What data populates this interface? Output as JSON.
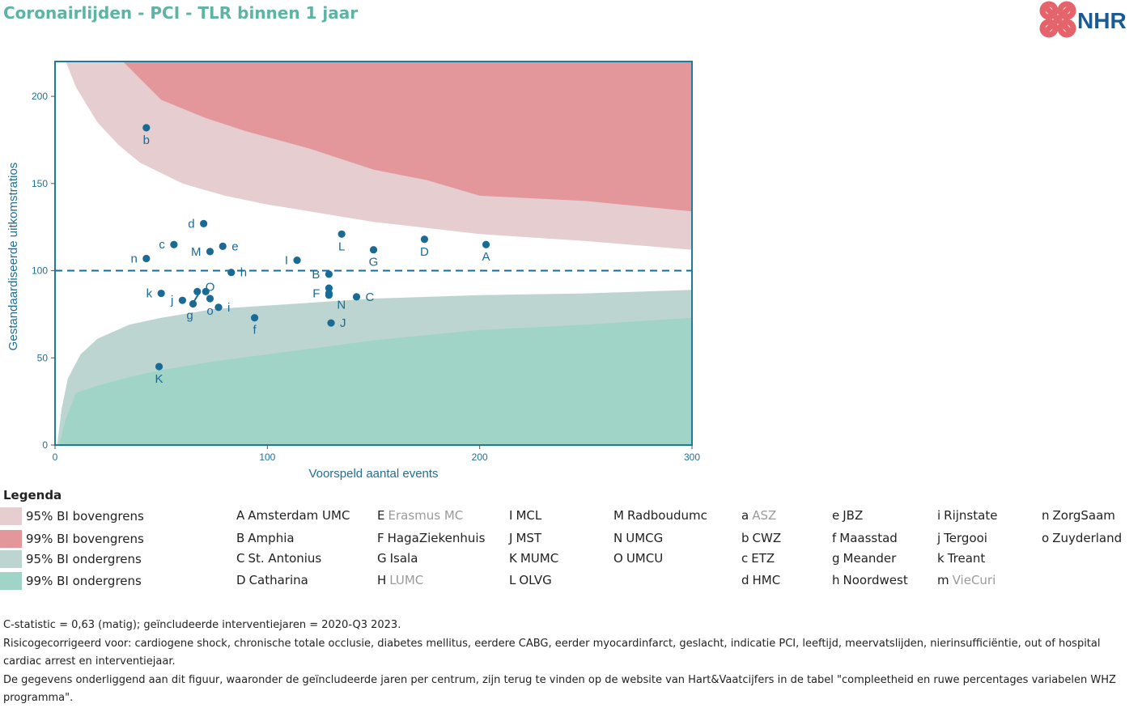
{
  "title": "Coronairlijden - PCI - TLR binnen 1 jaar",
  "logo_text": "NHR",
  "colors": {
    "upper95": "#e5cdd0",
    "upper99": "#e3979a",
    "lower95": "#bdd5d1",
    "lower99": "#9fd4c6",
    "point": "#1a6a96",
    "axis": "#1f7a9c",
    "logo": "#e5646b"
  },
  "chart_data": {
    "type": "scatter",
    "title": "",
    "xlabel": "Voorspeld aantal events",
    "ylabel": "Gestandaardiseerde uitkomstratios",
    "xlim": [
      0,
      300
    ],
    "ylim": [
      0,
      220
    ],
    "x_ticks": [
      0,
      100,
      200,
      300
    ],
    "y_ticks": [
      0,
      50,
      100,
      150,
      200
    ],
    "reference_line": 100,
    "bands": {
      "upper95": [
        [
          5,
          220
        ],
        [
          10,
          205
        ],
        [
          20,
          185
        ],
        [
          30,
          172
        ],
        [
          40,
          162
        ],
        [
          60,
          150
        ],
        [
          80,
          143
        ],
        [
          100,
          138
        ],
        [
          150,
          128
        ],
        [
          200,
          121
        ],
        [
          250,
          117
        ],
        [
          300,
          112
        ]
      ],
      "upper99": [
        [
          32,
          220
        ],
        [
          50,
          198
        ],
        [
          70,
          188
        ],
        [
          90,
          180
        ],
        [
          120,
          170
        ],
        [
          150,
          158
        ],
        [
          175,
          152
        ],
        [
          200,
          143
        ],
        [
          250,
          140
        ],
        [
          300,
          134
        ]
      ],
      "lower95": [
        [
          1,
          0
        ],
        [
          3,
          20
        ],
        [
          6,
          38
        ],
        [
          12,
          52
        ],
        [
          20,
          61
        ],
        [
          35,
          69
        ],
        [
          50,
          73
        ],
        [
          75,
          78
        ],
        [
          100,
          80
        ],
        [
          150,
          84
        ],
        [
          200,
          86
        ],
        [
          250,
          87
        ],
        [
          300,
          89
        ]
      ],
      "lower99": [
        [
          2,
          0
        ],
        [
          5,
          15
        ],
        [
          10,
          30
        ],
        [
          20,
          34
        ],
        [
          35,
          39
        ],
        [
          50,
          43
        ],
        [
          75,
          48
        ],
        [
          100,
          52
        ],
        [
          150,
          60
        ],
        [
          200,
          66
        ],
        [
          250,
          69
        ],
        [
          300,
          73
        ]
      ]
    },
    "points": [
      {
        "label": "A",
        "x": 203,
        "y": 115,
        "label_pos": "below"
      },
      {
        "label": "B",
        "x": 129,
        "y": 98,
        "label_pos": "left"
      },
      {
        "label": "C",
        "x": 142,
        "y": 85,
        "label_pos": "right"
      },
      {
        "label": "D",
        "x": 174,
        "y": 118,
        "label_pos": "below"
      },
      {
        "label": "E",
        "x": 129,
        "y": 90,
        "label_pos": "none"
      },
      {
        "label": "F",
        "x": 129,
        "y": 87,
        "label_pos": "left"
      },
      {
        "label": "G",
        "x": 150,
        "y": 112,
        "label_pos": "below"
      },
      {
        "label": "h",
        "x": 83,
        "y": 99,
        "label_pos": "right"
      },
      {
        "label": "i",
        "x": 77,
        "y": 79,
        "label_pos": "right"
      },
      {
        "label": "I",
        "x": 114,
        "y": 106,
        "label_pos": "left"
      },
      {
        "label": "j",
        "x": 60,
        "y": 83,
        "label_pos": "left"
      },
      {
        "label": "J",
        "x": 130,
        "y": 70,
        "label_pos": "right"
      },
      {
        "label": "K",
        "x": 49,
        "y": 45,
        "label_pos": "below"
      },
      {
        "label": "k",
        "x": 50,
        "y": 87,
        "label_pos": "left"
      },
      {
        "label": "L",
        "x": 135,
        "y": 121,
        "label_pos": "below"
      },
      {
        "label": "M",
        "x": 73,
        "y": 111,
        "label_pos": "left"
      },
      {
        "label": "m",
        "x": 71,
        "y": 88,
        "label_pos": "none"
      },
      {
        "label": "N",
        "x": 129,
        "y": 86,
        "label_pos": "below-right"
      },
      {
        "label": "n",
        "x": 43,
        "y": 107,
        "label_pos": "left"
      },
      {
        "label": "O",
        "x": 67,
        "y": 88,
        "label_pos": "above-right"
      },
      {
        "label": "o",
        "x": 73,
        "y": 84,
        "label_pos": "below"
      },
      {
        "label": "b",
        "x": 43,
        "y": 182,
        "label_pos": "below"
      },
      {
        "label": "c",
        "x": 56,
        "y": 115,
        "label_pos": "left"
      },
      {
        "label": "d",
        "x": 70,
        "y": 127,
        "label_pos": "left"
      },
      {
        "label": "e",
        "x": 79,
        "y": 114,
        "label_pos": "right"
      },
      {
        "label": "f",
        "x": 94,
        "y": 73,
        "label_pos": "below"
      },
      {
        "label": "g",
        "x": 65,
        "y": 81,
        "label_pos": "below-left"
      }
    ]
  },
  "legend": {
    "title": "Legenda",
    "swatches": [
      {
        "key": "upper95",
        "label": "95% BI bovengrens"
      },
      {
        "key": "upper99",
        "label": "99% BI bovengrens"
      },
      {
        "key": "lower95",
        "label": "95% BI ondergrens"
      },
      {
        "key": "lower99",
        "label": "99% BI ondergrens"
      }
    ],
    "hospitals": [
      {
        "code": "A",
        "name": "Amsterdam UMC",
        "gray": false
      },
      {
        "code": "B",
        "name": "Amphia",
        "gray": false
      },
      {
        "code": "C",
        "name": "St. Antonius",
        "gray": false
      },
      {
        "code": "D",
        "name": "Catharina",
        "gray": false
      },
      {
        "code": "E",
        "name": "Erasmus MC",
        "gray": true
      },
      {
        "code": "F",
        "name": "HagaZiekenhuis",
        "gray": false
      },
      {
        "code": "G",
        "name": "Isala",
        "gray": false
      },
      {
        "code": "H",
        "name": "LUMC",
        "gray": true
      },
      {
        "code": "I",
        "name": "MCL",
        "gray": false
      },
      {
        "code": "J",
        "name": "MST",
        "gray": false
      },
      {
        "code": "K",
        "name": "MUMC",
        "gray": false
      },
      {
        "code": "L",
        "name": "OLVG",
        "gray": false
      },
      {
        "code": "M",
        "name": "Radboudumc",
        "gray": false
      },
      {
        "code": "N",
        "name": "UMCG",
        "gray": false
      },
      {
        "code": "O",
        "name": "UMCU",
        "gray": false
      },
      {
        "code": "a",
        "name": "ASZ",
        "gray": true
      },
      {
        "code": "b",
        "name": "CWZ",
        "gray": false
      },
      {
        "code": "c",
        "name": "ETZ",
        "gray": false
      },
      {
        "code": "d",
        "name": "HMC",
        "gray": false
      },
      {
        "code": "e",
        "name": "JBZ",
        "gray": false
      },
      {
        "code": "f",
        "name": "Maasstad",
        "gray": false
      },
      {
        "code": "g",
        "name": "Meander",
        "gray": false
      },
      {
        "code": "h",
        "name": "Noordwest",
        "gray": false
      },
      {
        "code": "i",
        "name": "Rijnstate",
        "gray": false
      },
      {
        "code": "j",
        "name": "Tergooi",
        "gray": false
      },
      {
        "code": "k",
        "name": "Treant",
        "gray": false
      },
      {
        "code": "m",
        "name": "VieCuri",
        "gray": true
      },
      {
        "code": "n",
        "name": "ZorgSaam",
        "gray": false
      },
      {
        "code": "o",
        "name": "Zuyderland",
        "gray": false
      }
    ]
  },
  "footer": {
    "line1": "C-statistic =  0,63 (matig); geïncludeerde interventiejaren = 2020-Q3 2023.",
    "line2": "Risicogecorrigeerd voor: cardiogene shock, chronische totale occlusie, diabetes mellitus, eerdere CABG, eerder myocardinfarct, geslacht, indicatie PCI, leeftijd, meervatslijden, nierinsufficiëntie, out of hospital cardiac arrest en interventiejaar.",
    "line3": "De gegevens onderliggend aan dit figuur, waaronder de geïncludeerde jaren per centrum, zijn terug te vinden op de website van Hart&Vaatcijfers in de tabel \"compleetheid en ruwe percentages variabelen WHZ programma\"."
  }
}
